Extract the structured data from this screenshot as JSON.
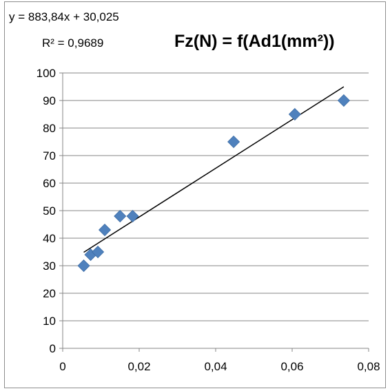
{
  "chart_data": {
    "type": "scatter",
    "title": "Fz(N) = f(Ad1(mm²))",
    "xlabel": "",
    "ylabel": "",
    "xlim": [
      0,
      0.08
    ],
    "ylim": [
      0,
      100
    ],
    "x_ticks": [
      0,
      0.02,
      0.04,
      0.06,
      0.08
    ],
    "x_tick_labels": [
      "0",
      "0,02",
      "0,04",
      "0,06",
      "0,08"
    ],
    "y_ticks": [
      0,
      10,
      20,
      30,
      40,
      50,
      60,
      70,
      80,
      90,
      100
    ],
    "y_tick_labels": [
      "0",
      "10",
      "20",
      "30",
      "40",
      "50",
      "60",
      "70",
      "80",
      "90",
      "100"
    ],
    "grid": {
      "horizontal": true,
      "vertical": false
    },
    "legend": "none",
    "series": [
      {
        "marker": "diamond",
        "color": "#4f81bd",
        "x": [
          0.0055,
          0.0073,
          0.0092,
          0.011,
          0.015,
          0.0183,
          0.0447,
          0.0607,
          0.0735
        ],
        "y": [
          30,
          34,
          35,
          43,
          48,
          48,
          75,
          85,
          90
        ]
      }
    ],
    "trendline": {
      "type": "linear",
      "slope": 883.84,
      "intercept": 30.025,
      "x_range": [
        0.0055,
        0.0735
      ],
      "color": "#000000",
      "equation_label": "y = 883,84x + 30,025",
      "r2_label": "R² = 0,9689"
    }
  }
}
